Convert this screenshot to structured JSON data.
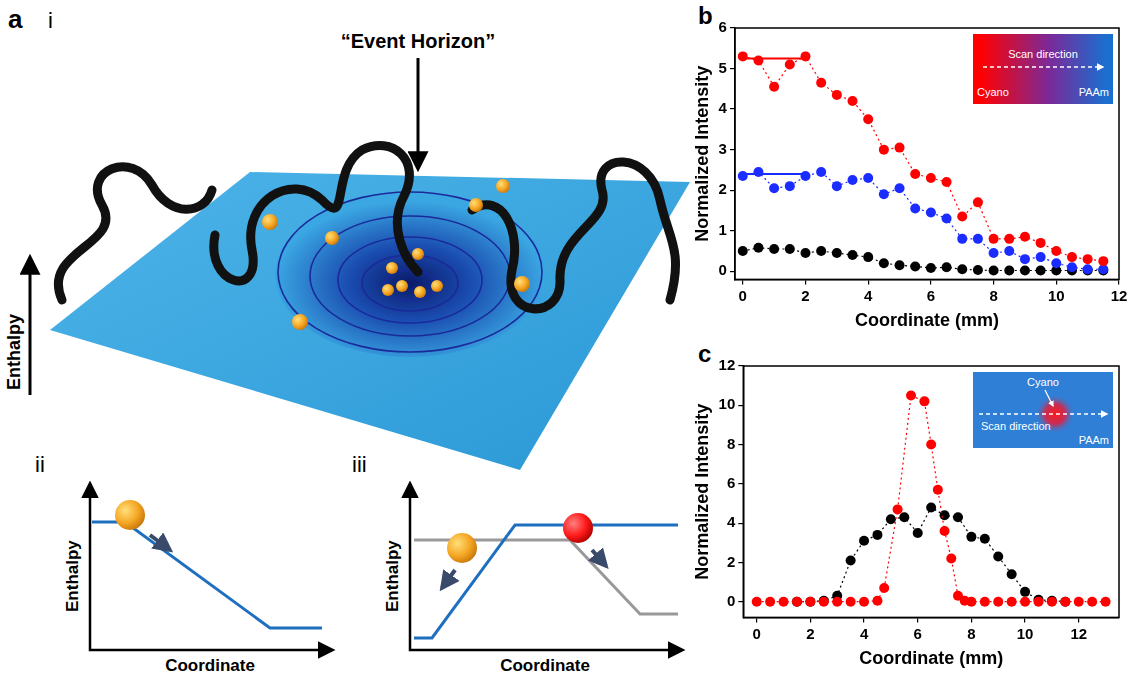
{
  "diagram": {
    "panel": "a",
    "i": {
      "label": "i",
      "annotation": "“Event Horizon”",
      "axis_label": "Enthalpy"
    },
    "ii": {
      "label": "ii",
      "ylabel": "Enthalpy",
      "xlabel": "Coordinate"
    },
    "iii": {
      "label": "iii",
      "ylabel": "Enthalpy",
      "xlabel": "Coordinate"
    }
  },
  "chart_data": [
    {
      "panel": "b",
      "type": "scatter",
      "xlabel": "Coordinate (mm)",
      "ylabel": "Normalized Intensity",
      "xlim": [
        -0.25,
        12
      ],
      "xticks": [
        0,
        2,
        4,
        6,
        8,
        10,
        12
      ],
      "ylim": [
        -0.2,
        6
      ],
      "yticks": [
        0,
        1,
        2,
        3,
        4,
        5,
        6
      ],
      "grid": false,
      "inset": {
        "left_label": "Cyano",
        "right_label": "PAAm",
        "arrow_label": "Scan direction"
      },
      "x": [
        0,
        0.5,
        1,
        1.5,
        2,
        2.5,
        3,
        3.5,
        4,
        4.5,
        5,
        5.5,
        6,
        6.5,
        7,
        7.5,
        8,
        8.5,
        9,
        9.5,
        10,
        10.5,
        11,
        11.5
      ],
      "series": [
        {
          "color": "#ff0000",
          "marker": "circle",
          "line_style": "dotted",
          "values": [
            5.3,
            5.2,
            4.55,
            5.1,
            5.3,
            4.65,
            4.35,
            4.2,
            3.75,
            3.0,
            3.05,
            2.4,
            2.3,
            2.2,
            1.35,
            1.7,
            0.8,
            0.8,
            0.85,
            0.7,
            0.5,
            0.35,
            0.3,
            0.25
          ]
        },
        {
          "color": "#1a2cff",
          "marker": "circle",
          "line_style": "dotted",
          "values": [
            2.35,
            2.45,
            2.05,
            2.1,
            2.35,
            2.45,
            2.1,
            2.25,
            2.3,
            1.9,
            2.05,
            1.55,
            1.45,
            1.3,
            0.8,
            0.8,
            0.45,
            0.5,
            0.3,
            0.35,
            0.2,
            0.1,
            0.05,
            0.05
          ]
        },
        {
          "color": "#000000",
          "marker": "circle",
          "line_style": "dotted",
          "values": [
            0.5,
            0.58,
            0.55,
            0.55,
            0.45,
            0.5,
            0.45,
            0.4,
            0.35,
            0.2,
            0.15,
            0.12,
            0.08,
            0.1,
            0.05,
            0.03,
            0.02,
            0.02,
            0.02,
            0.02,
            0.02,
            0.02,
            0.02,
            0.02
          ]
        },
        {
          "color": "#ff0000",
          "marker": "none",
          "line_style": "solid",
          "x": [
            0,
            2
          ],
          "values": [
            5.25,
            5.25
          ]
        },
        {
          "color": "#1a2cff",
          "marker": "none",
          "line_style": "solid",
          "x": [
            0,
            2
          ],
          "values": [
            2.4,
            2.4
          ]
        }
      ]
    },
    {
      "panel": "c",
      "type": "scatter",
      "xlabel": "Coordinate (mm)",
      "ylabel": "Normalized Intensity",
      "xlim": [
        -0.5,
        13.5
      ],
      "xticks": [
        0,
        2,
        4,
        6,
        8,
        10,
        12
      ],
      "ylim": [
        -0.8,
        12
      ],
      "yticks": [
        0,
        2,
        4,
        6,
        8,
        10,
        12
      ],
      "grid": false,
      "inset": {
        "spot_label": "Cyano",
        "arrow_label": "Scan direction",
        "ground_label": "PAAm"
      },
      "series": [
        {
          "color": "#ff0000",
          "marker": "circle",
          "line_style": "dotted",
          "x": [
            0,
            0.5,
            1,
            1.5,
            2,
            2.5,
            3,
            3.5,
            4,
            4.5,
            4.75,
            5.25,
            5.75,
            6.25,
            6.5,
            6.75,
            7,
            7.25,
            7.5,
            7.75,
            8,
            8.5,
            9,
            9.5,
            10,
            10.5,
            11,
            11.5,
            12,
            12.5,
            13
          ],
          "values": [
            0,
            0,
            0,
            0,
            0,
            0,
            0,
            0,
            0,
            0.05,
            0.7,
            4.7,
            10.5,
            10.2,
            8.0,
            5.7,
            3.6,
            2.2,
            0.3,
            0.05,
            0,
            0,
            0,
            0,
            0,
            0,
            0,
            0,
            0,
            0,
            0
          ]
        },
        {
          "color": "#000000",
          "marker": "circle",
          "line_style": "dotted",
          "x": [
            1.5,
            2,
            2.5,
            3,
            3.5,
            4,
            4.5,
            5,
            5.5,
            6,
            6.5,
            7,
            7.5,
            8,
            8.5,
            9,
            9.5,
            10,
            10.5,
            11,
            11.5
          ],
          "values": [
            0,
            0,
            0.05,
            0.3,
            2.1,
            3.1,
            3.4,
            4.2,
            4.3,
            3.5,
            4.8,
            4.4,
            4.3,
            3.3,
            3.2,
            2.3,
            1.4,
            0.5,
            0.1,
            0.05,
            0
          ]
        }
      ]
    }
  ]
}
